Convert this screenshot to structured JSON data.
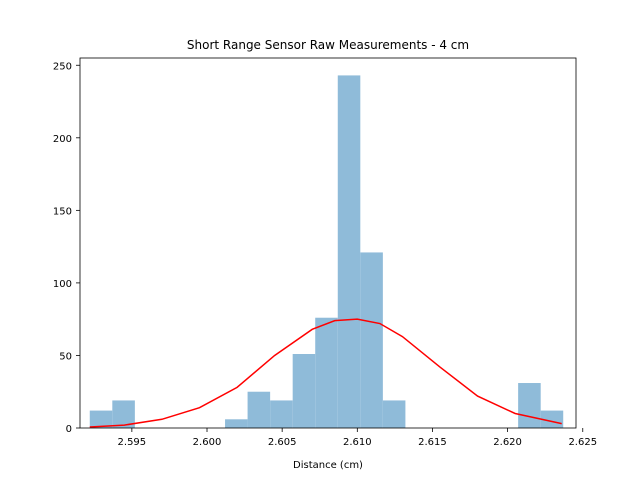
{
  "chart_data": {
    "type": "bar",
    "title": "Short Range Sensor Raw Measurements - 4 cm",
    "xlabel": "Distance (cm)",
    "ylabel": "",
    "xlim": [
      2.59155,
      2.62455
    ],
    "ylim": [
      0,
      255
    ],
    "x_ticks": [
      2.595,
      2.6,
      2.605,
      2.61,
      2.615,
      2.62,
      2.625
    ],
    "x_tick_labels": [
      "2.595",
      "2.600",
      "2.605",
      "2.610",
      "2.615",
      "2.620",
      "2.625"
    ],
    "y_ticks": [
      0,
      50,
      100,
      150,
      200,
      250
    ],
    "y_tick_labels": [
      "0",
      "50",
      "100",
      "150",
      "200",
      "250"
    ],
    "grid": false,
    "series": [
      {
        "type": "histogram",
        "color": "#8fbbd9",
        "bin_width": 0.0015,
        "bin_starts": [
          2.5922,
          2.5937,
          2.5952,
          2.5967,
          2.5982,
          2.5997,
          2.6012,
          2.6027,
          2.6042,
          2.6057,
          2.6072,
          2.6087,
          2.6102,
          2.6117,
          2.6132,
          2.6147,
          2.6162,
          2.6177,
          2.6192,
          2.6207,
          2.6222
        ],
        "values": [
          12,
          19,
          0,
          0,
          0,
          0,
          6,
          25,
          19,
          51,
          76,
          243,
          121,
          19,
          0,
          0,
          0,
          0,
          0,
          31,
          12
        ]
      },
      {
        "type": "line",
        "color": "#ff0000",
        "x": [
          2.5922,
          2.5945,
          2.597,
          2.5995,
          2.602,
          2.6045,
          2.607,
          2.6085,
          2.61,
          2.6115,
          2.613,
          2.6155,
          2.618,
          2.6205,
          2.6236
        ],
        "y": [
          0.7,
          2,
          6,
          14,
          28,
          50,
          68,
          74,
          75,
          72,
          63,
          42,
          22,
          10,
          3
        ]
      }
    ]
  }
}
